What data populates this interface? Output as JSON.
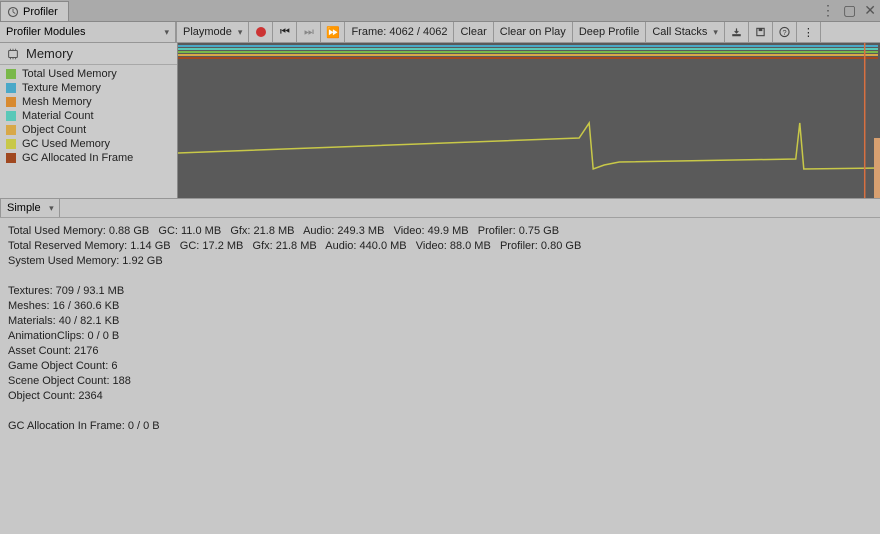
{
  "window": {
    "tab_title": "Profiler"
  },
  "toolbar": {
    "modules_label": "Profiler Modules",
    "playmode_label": "Playmode",
    "frame_label": "Frame: 4062 / 4062",
    "clear_label": "Clear",
    "clear_on_play_label": "Clear on Play",
    "deep_profile_label": "Deep Profile",
    "call_stacks_label": "Call Stacks"
  },
  "sidebar": {
    "title": "Memory",
    "items": [
      {
        "label": "Total Used Memory",
        "color": "#7ab84a"
      },
      {
        "label": "Texture Memory",
        "color": "#4aa8c8"
      },
      {
        "label": "Mesh Memory",
        "color": "#d88a30"
      },
      {
        "label": "Material Count",
        "color": "#5ac8b8"
      },
      {
        "label": "Object Count",
        "color": "#d8a848"
      },
      {
        "label": "GC Used Memory",
        "color": "#c8c848"
      },
      {
        "label": "GC Allocated In Frame",
        "color": "#a04820"
      }
    ]
  },
  "chart": {
    "stripe_colors": [
      "#4aa8c8",
      "#5ac8b8",
      "#7ab84a",
      "#d8a848",
      "#a04820"
    ],
    "line_color": "#c8c848",
    "background": "#5a5a5a",
    "marker_color": "#d87040",
    "line_points": [
      [
        0,
        110
      ],
      [
        160,
        104
      ],
      [
        320,
        98
      ],
      [
        400,
        95
      ],
      [
        410,
        80
      ],
      [
        414,
        126
      ],
      [
        425,
        122
      ],
      [
        440,
        119
      ],
      [
        616,
        116
      ],
      [
        620,
        80
      ],
      [
        624,
        126
      ],
      [
        700,
        125
      ]
    ]
  },
  "detail": {
    "mode_label": "Simple"
  },
  "stats": {
    "lines": [
      "Total Used Memory: 0.88 GB   GC: 11.0 MB   Gfx: 21.8 MB   Audio: 249.3 MB   Video: 49.9 MB   Profiler: 0.75 GB",
      "Total Reserved Memory: 1.14 GB   GC: 17.2 MB   Gfx: 21.8 MB   Audio: 440.0 MB   Video: 88.0 MB   Profiler: 0.80 GB",
      "System Used Memory: 1.92 GB",
      "",
      "Textures: 709 / 93.1 MB",
      "Meshes: 16 / 360.6 KB",
      "Materials: 40 / 82.1 KB",
      "AnimationClips: 0 / 0 B",
      "Asset Count: 2176",
      "Game Object Count: 6",
      "Scene Object Count: 188",
      "Object Count: 2364",
      "",
      "GC Allocation In Frame: 0 / 0 B"
    ]
  }
}
